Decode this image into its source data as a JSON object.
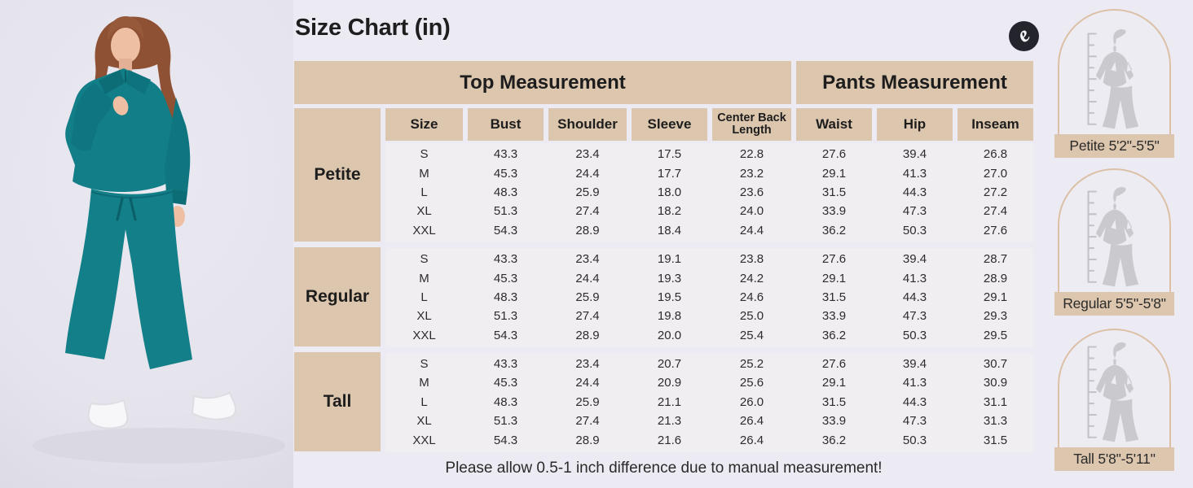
{
  "title": "Size Chart (in)",
  "note": "Please allow 0.5-1 inch difference due to manual measurement!",
  "logo_glyph": "e",
  "photo": {
    "alt": "Model wearing teal half-zip collared sweatshirt and matching wide-leg pants with white sneakers"
  },
  "table": {
    "top_banner": "Top Measurement",
    "pants_banner": "Pants Measurement",
    "columns": [
      "Size",
      "Bust",
      "Shoulder",
      "Sleeve",
      "Center Back Length",
      "Waist",
      "Hip",
      "Inseam"
    ],
    "groups": [
      {
        "label": "Petite",
        "rows": [
          [
            "S",
            "43.3",
            "23.4",
            "17.5",
            "22.8",
            "27.6",
            "39.4",
            "26.8"
          ],
          [
            "M",
            "45.3",
            "24.4",
            "17.7",
            "23.2",
            "29.1",
            "41.3",
            "27.0"
          ],
          [
            "L",
            "48.3",
            "25.9",
            "18.0",
            "23.6",
            "31.5",
            "44.3",
            "27.2"
          ],
          [
            "XL",
            "51.3",
            "27.4",
            "18.2",
            "24.0",
            "33.9",
            "47.3",
            "27.4"
          ],
          [
            "XXL",
            "54.3",
            "28.9",
            "18.4",
            "24.4",
            "36.2",
            "50.3",
            "27.6"
          ]
        ]
      },
      {
        "label": "Regular",
        "rows": [
          [
            "S",
            "43.3",
            "23.4",
            "19.1",
            "23.8",
            "27.6",
            "39.4",
            "28.7"
          ],
          [
            "M",
            "45.3",
            "24.4",
            "19.3",
            "24.2",
            "29.1",
            "41.3",
            "28.9"
          ],
          [
            "L",
            "48.3",
            "25.9",
            "19.5",
            "24.6",
            "31.5",
            "44.3",
            "29.1"
          ],
          [
            "XL",
            "51.3",
            "27.4",
            "19.8",
            "25.0",
            "33.9",
            "47.3",
            "29.3"
          ],
          [
            "XXL",
            "54.3",
            "28.9",
            "20.0",
            "25.4",
            "36.2",
            "50.3",
            "29.5"
          ]
        ]
      },
      {
        "label": "Tall",
        "rows": [
          [
            "S",
            "43.3",
            "23.4",
            "20.7",
            "25.2",
            "27.6",
            "39.4",
            "30.7"
          ],
          [
            "M",
            "45.3",
            "24.4",
            "20.9",
            "25.6",
            "29.1",
            "41.3",
            "30.9"
          ],
          [
            "L",
            "48.3",
            "25.9",
            "21.1",
            "26.0",
            "31.5",
            "44.3",
            "31.1"
          ],
          [
            "XL",
            "51.3",
            "27.4",
            "21.3",
            "26.4",
            "33.9",
            "47.3",
            "31.3"
          ],
          [
            "XXL",
            "54.3",
            "28.9",
            "21.6",
            "26.4",
            "36.2",
            "50.3",
            "31.5"
          ]
        ]
      }
    ]
  },
  "height_cards": [
    {
      "label": "Petite 5'2\"-5'5\""
    },
    {
      "label": "Regular 5'5\"-5'8\""
    },
    {
      "label": "Tall 5'8\"-5'11\""
    }
  ],
  "colors": {
    "beige": "#dcc6ae",
    "band": "#f1eef2",
    "page_bg": "#eceaf2",
    "teal": "#117e88",
    "logo_bg": "#24242c",
    "card_outline": "#dcc0a6",
    "silhouette": "#c9c9ce"
  }
}
